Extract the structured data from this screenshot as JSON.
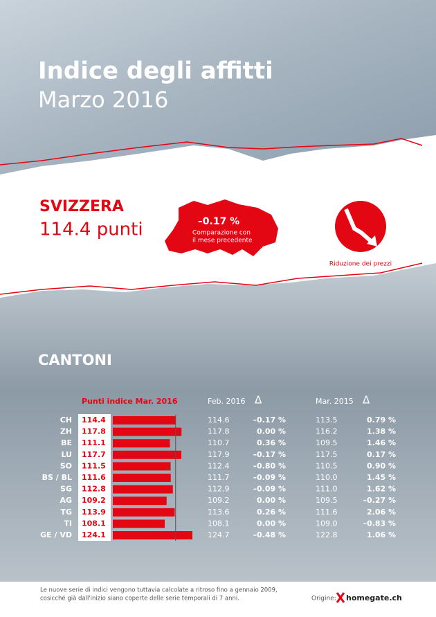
{
  "header": {
    "title": "Indice degli affitti",
    "subtitle": "Marzo 2016"
  },
  "national": {
    "label": "SVIZZERA",
    "value": "114.4 punti",
    "change": "–0.17 %",
    "comparison_1": "Comparazione con",
    "comparison_2": "il mese precedente",
    "badge": "Riduzione dei prezzi"
  },
  "cantons": {
    "title": "CANTONI",
    "col_current": "Punti indice Mar. 2016",
    "col_feb": "Feb. 2016",
    "col_mar": "Mar. 2015",
    "delta": "Δ",
    "rows": [
      {
        "code": "CH",
        "value": 114.4,
        "feb": "114.6",
        "feb_change": "–0.17 %",
        "mar": "113.5",
        "mar_change": "0.79 %"
      },
      {
        "code": "ZH",
        "value": 117.8,
        "feb": "117.8",
        "feb_change": "0.00 %",
        "mar": "116.2",
        "mar_change": "1.38 %"
      },
      {
        "code": "BE",
        "value": 111.1,
        "feb": "110.7",
        "feb_change": "0.36 %",
        "mar": "109.5",
        "mar_change": "1.46 %"
      },
      {
        "code": "LU",
        "value": 117.7,
        "feb": "117.9",
        "feb_change": "–0.17 %",
        "mar": "117.5",
        "mar_change": "0.17 %"
      },
      {
        "code": "SO",
        "value": 111.5,
        "feb": "112.4",
        "feb_change": "–0.80 %",
        "mar": "110.5",
        "mar_change": "0.90 %"
      },
      {
        "code": "BS / BL",
        "value": 111.6,
        "feb": "111.7",
        "feb_change": "–0.09 %",
        "mar": "110.0",
        "mar_change": "1.45 %"
      },
      {
        "code": "SG",
        "value": 112.8,
        "feb": "112.9",
        "feb_change": "–0.09 %",
        "mar": "111.0",
        "mar_change": "1.62 %"
      },
      {
        "code": "AG",
        "value": 109.2,
        "feb": "109.2",
        "feb_change": "0.00 %",
        "mar": "109.5",
        "mar_change": "–0.27 %"
      },
      {
        "code": "TG",
        "value": 113.9,
        "feb": "113.6",
        "feb_change": "0.26 %",
        "mar": "111.6",
        "mar_change": "2.06 %"
      },
      {
        "code": "TI",
        "value": 108.1,
        "feb": "108.1",
        "feb_change": "0.00 %",
        "mar": "109.0",
        "mar_change": "–0.83 %"
      },
      {
        "code": "GE / VD",
        "value": 124.1,
        "feb": "124.7",
        "feb_change": "–0.48 %",
        "mar": "122.8",
        "mar_change": "1.06 %"
      }
    ]
  },
  "footer": {
    "note_1": "Le nuove serie di indici vengono tuttavia calcolate a ritroso fino a gennaio 2009,",
    "note_2": "cosicché già dall'inizio siano coperte delle serie temporali di 7 anni.",
    "origin": "Origine:",
    "brand": "homegate.ch"
  }
}
